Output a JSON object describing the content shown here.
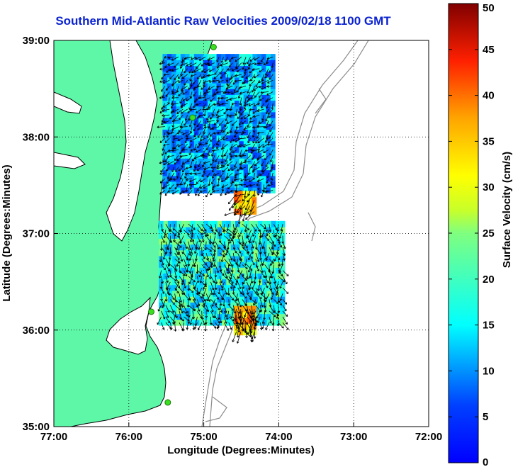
{
  "chart_data": {
    "type": "heatmap",
    "title": "Southern Mid-Atlantic Raw Velocities 2009/02/18 1100 GMT",
    "xlabel": "Longitude (Degrees:Minutes)",
    "ylabel": "Latitude (Degrees:Minutes)",
    "x_range": [
      -77,
      -72
    ],
    "y_range": [
      35,
      39
    ],
    "x_ticks": [
      -77,
      -76,
      -75,
      -74,
      -73,
      -72
    ],
    "x_tick_labels": [
      "77:00",
      "76:00",
      "75:00",
      "74:00",
      "73:00",
      "72:00"
    ],
    "y_ticks": [
      35,
      36,
      37,
      38,
      39
    ],
    "y_tick_labels": [
      "35:00",
      "36:00",
      "37:00",
      "38:00",
      "39:00"
    ],
    "grid": true,
    "colorbar": {
      "label": "Surface Velocity (cm/s)",
      "range": [
        0,
        50
      ],
      "ticks": [
        0,
        5,
        10,
        15,
        20,
        25,
        30,
        35,
        40,
        45,
        50
      ],
      "tick_labels": [
        "0",
        "5",
        "10",
        "15",
        "20",
        "25",
        "30",
        "35",
        "40",
        "45",
        "50"
      ],
      "colormap": "jet"
    },
    "colors": {
      "land": "#5ef7a8",
      "coastline": "#000000",
      "bathymetry": "#8c8c8c",
      "station": "#39e01f",
      "title": "#0b23d0"
    },
    "stations": [
      {
        "lon": -74.87,
        "lat": 38.93
      },
      {
        "lon": -75.15,
        "lat": 38.2
      },
      {
        "lon": -75.7,
        "lat": 36.19
      },
      {
        "lon": -75.48,
        "lat": 35.25
      }
    ],
    "regions": [
      {
        "name": "north",
        "lon": [
          -75.55,
          -74.1
        ],
        "lat": [
          37.42,
          38.85
        ],
        "mean_speed": 15
      },
      {
        "name": "north-hotspot",
        "lon": [
          -74.6,
          -74.3
        ],
        "lat": [
          37.2,
          37.42
        ],
        "mean_speed": 34
      },
      {
        "name": "south",
        "lon": [
          -75.6,
          -73.95
        ],
        "lat": [
          36.05,
          37.1
        ],
        "mean_speed": 20
      },
      {
        "name": "south-hotspot",
        "lon": [
          -74.6,
          -74.35
        ],
        "lat": [
          35.95,
          36.2
        ],
        "mean_speed": 35
      }
    ]
  }
}
